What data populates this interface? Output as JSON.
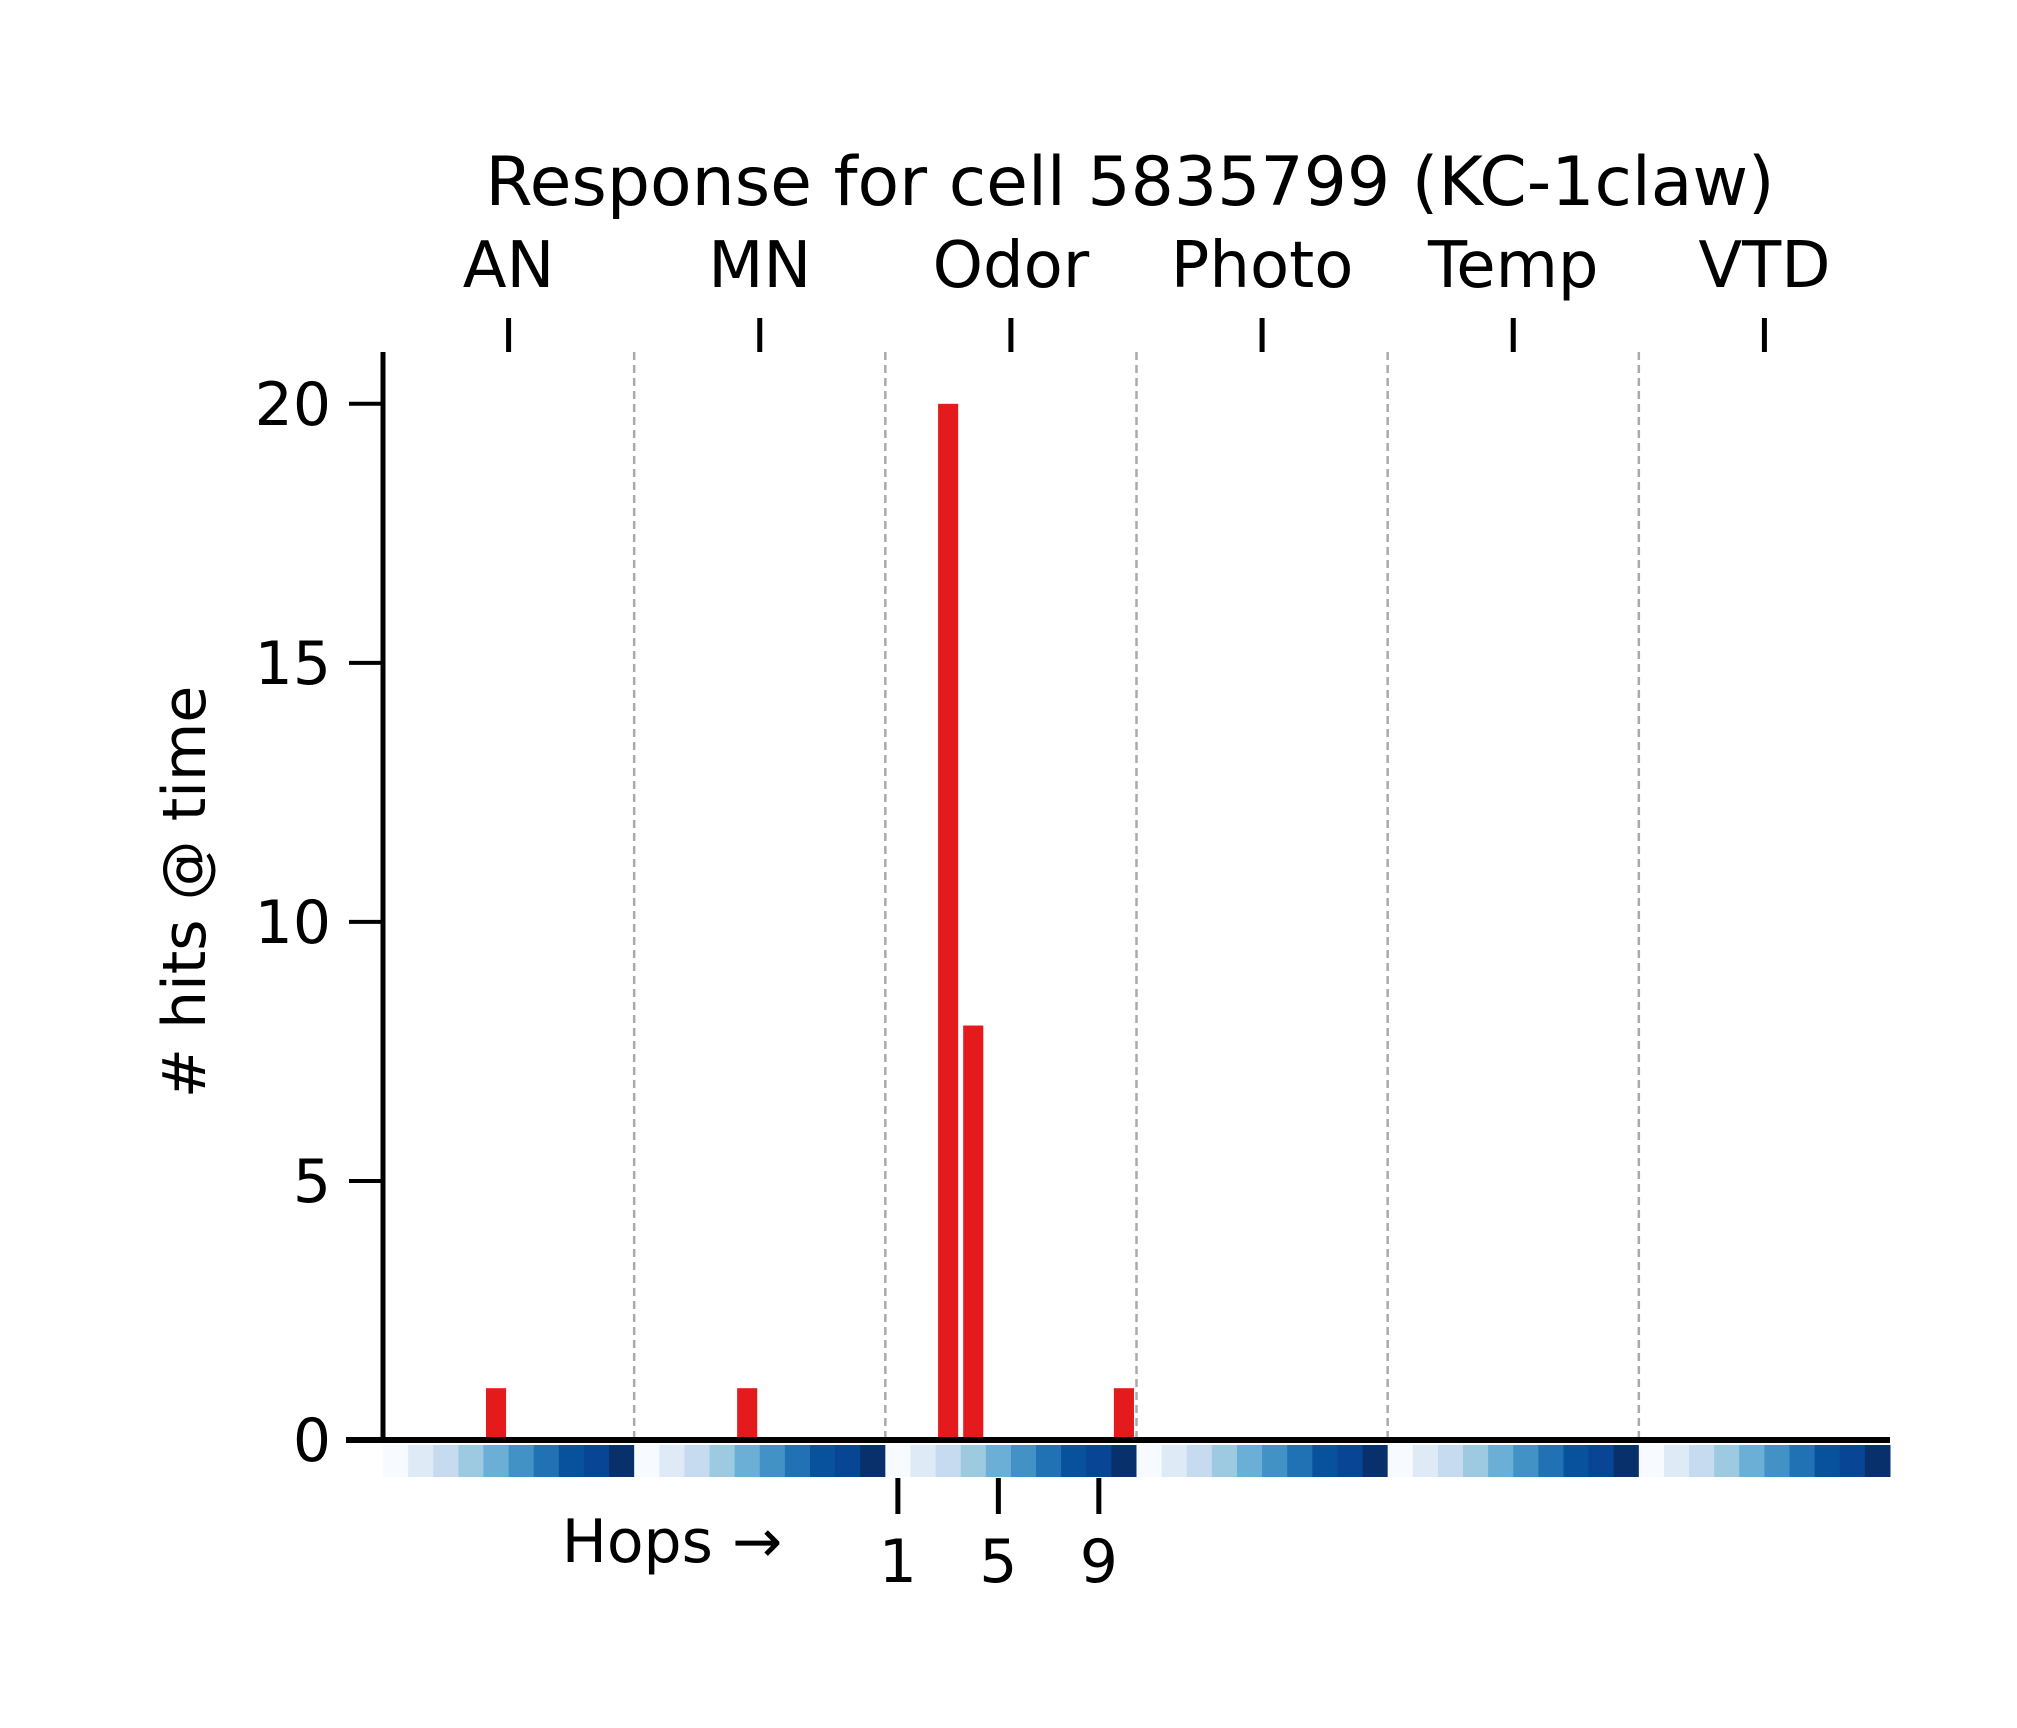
{
  "chart_data": {
    "type": "bar",
    "title": "Response for cell 5835799 (KC-1claw)",
    "xlabel": "Hops →",
    "ylabel": "# hits @ time",
    "ylim": [
      0,
      21
    ],
    "yticks": [
      0,
      5,
      10,
      15,
      20
    ],
    "hop_tick_labels": [
      "1",
      "5",
      "9"
    ],
    "hop_tick_positions": [
      1,
      5,
      9
    ],
    "hops_per_group": 10,
    "grid": false,
    "legend": "none",
    "colors": {
      "bar": "#e41a1c",
      "separator": "#aaaaaa",
      "axis": "#000000",
      "hop_scale": [
        "#f7fbff",
        "#deebf7",
        "#c6dbef",
        "#9ecae1",
        "#6baed6",
        "#4292c6",
        "#2171b5",
        "#08519c",
        "#084594",
        "#08306b"
      ]
    },
    "groups": [
      {
        "name": "AN",
        "values": [
          0,
          0,
          0,
          0,
          1,
          0,
          0,
          0,
          0,
          0
        ]
      },
      {
        "name": "MN",
        "values": [
          0,
          0,
          0,
          0,
          1,
          0,
          0,
          0,
          0,
          0
        ]
      },
      {
        "name": "Odor",
        "values": [
          0,
          0,
          20,
          8,
          0,
          0,
          0,
          0,
          0,
          1
        ]
      },
      {
        "name": "Photo",
        "values": [
          0,
          0,
          0,
          0,
          0,
          0,
          0,
          0,
          0,
          0
        ]
      },
      {
        "name": "Temp",
        "values": [
          0,
          0,
          0,
          0,
          0,
          0,
          0,
          0,
          0,
          0
        ]
      },
      {
        "name": "VTD",
        "values": [
          0,
          0,
          0,
          0,
          0,
          0,
          0,
          0,
          0,
          0
        ]
      }
    ]
  }
}
